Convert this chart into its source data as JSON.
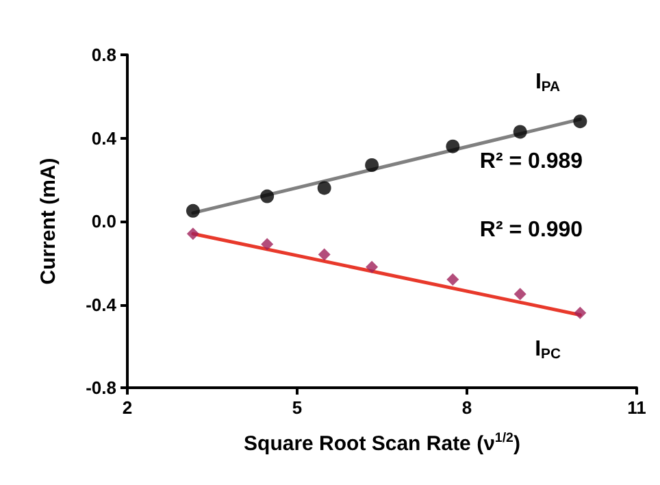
{
  "chart_data": {
    "type": "scatter",
    "xlabel": "Square Root Scan Rate (ν$^{1/2}$)",
    "ylabel": "Current (mA)",
    "xlim": [
      2,
      11
    ],
    "xticks": [
      2,
      5,
      8,
      11
    ],
    "ylim": [
      -0.8,
      0.8
    ],
    "yticks": [
      -0.8,
      -0.4,
      {
        "value": 0,
        "label": "0.0"
      },
      0.4,
      0.8
    ],
    "grid": false,
    "series": [
      {
        "type": "line",
        "color": "#808080",
        "x": [
          3.16,
          10
        ],
        "values": [
          0.04,
          0.49
        ],
        "marker": "none"
      },
      {
        "type": "line",
        "color": "#e8392b",
        "x": [
          3.16,
          10
        ],
        "values": [
          -0.06,
          -0.45
        ],
        "marker": "none"
      },
      {
        "color": "#000000",
        "marker": "circle",
        "x": [
          3.16,
          4.47,
          5.48,
          6.32,
          7.75,
          8.94,
          10
        ],
        "values": [
          0.05,
          0.12,
          0.16,
          0.27,
          0.36,
          0.43,
          0.48
        ]
      },
      {
        "color": "#a0205a",
        "marker": "diamond",
        "x": [
          3.16,
          4.47,
          5.48,
          6.32,
          7.75,
          8.94,
          10
        ],
        "values": [
          -0.06,
          -0.11,
          -0.16,
          -0.22,
          -0.28,
          -0.35,
          -0.44
        ]
      }
    ],
    "annotations": [
      "I$_{PA}$",
      "R² = 0.989",
      "R² = 0.990",
      "I$_{PC}$"
    ]
  }
}
